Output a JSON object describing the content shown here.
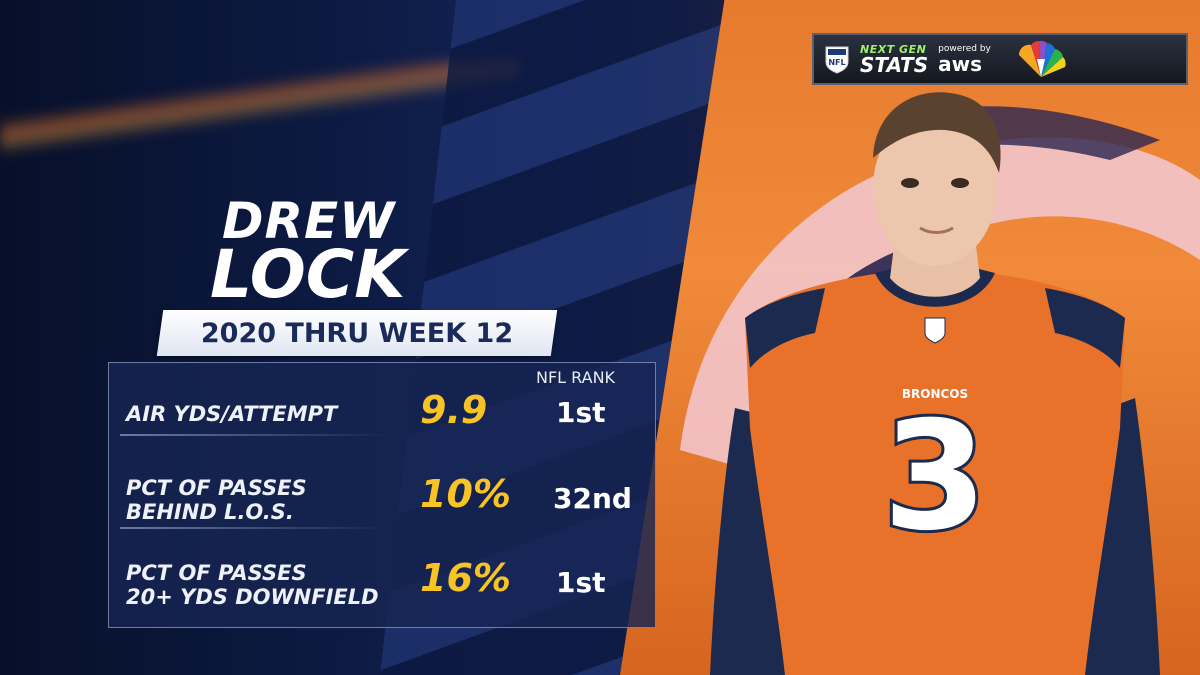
{
  "player": {
    "first_name": "DREW",
    "last_name": "LOCK",
    "jersey_number": "3",
    "team_wordmark": "BRONCOS"
  },
  "season_label": "2020 THRU WEEK 12",
  "rank_header": "NFL RANK",
  "stats": [
    {
      "label_line1": "AIR YDS/ATTEMPT",
      "label_line2": "",
      "value": "9.9",
      "rank": "1st"
    },
    {
      "label_line1": "PCT OF PASSES",
      "label_line2": "BEHIND L.O.S.",
      "value": "10%",
      "rank": "32nd"
    },
    {
      "label_line1": "PCT OF PASSES",
      "label_line2": "20+ YDS DOWNFIELD",
      "value": "16%",
      "rank": "1st"
    }
  ],
  "branding": {
    "ngs_top": "NEXT GEN",
    "ngs_bottom": "STATS",
    "powered_by": "powered by",
    "aws": "aws"
  },
  "colors": {
    "value_yellow": "#f7c325",
    "panel_navy": "#162452",
    "broncos_orange": "#e8722a"
  },
  "icons": [
    "nfl-shield-icon",
    "nbc-peacock-icon",
    "broncos-logo"
  ]
}
